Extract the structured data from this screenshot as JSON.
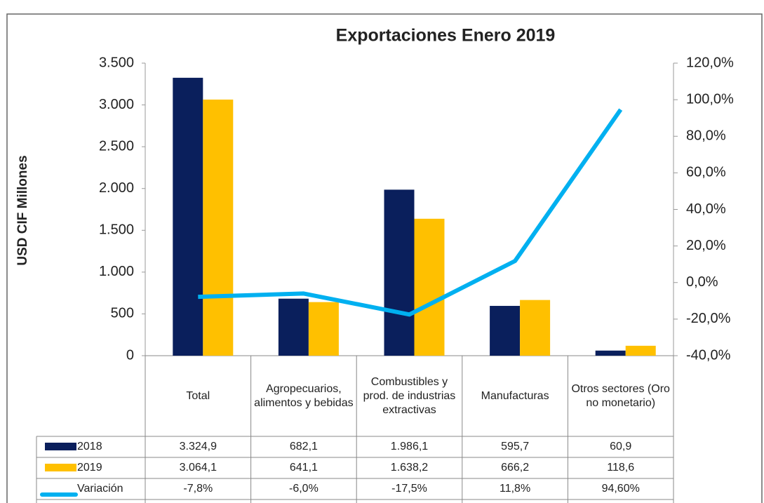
{
  "chart_data": {
    "type": "bar",
    "title": "Exportaciones  Enero 2019",
    "y_label": "USD CIF Millones",
    "categories": [
      "Total",
      "Agropecuarios, alimentos y bebidas",
      "Combustibles y prod. de industrias extractivas",
      "Manufacturas",
      "Otros sectores (Oro no monetario)"
    ],
    "series": [
      {
        "name": "2018",
        "type": "bar",
        "color": "#0a1f5c",
        "values": [
          3324.9,
          682.1,
          1986.1,
          595.7,
          60.9
        ],
        "value_labels": [
          "3.324,9",
          "682,1",
          "1.986,1",
          "595,7",
          "60,9"
        ]
      },
      {
        "name": "2019",
        "type": "bar",
        "color": "#ffc000",
        "values": [
          3064.1,
          641.1,
          1638.2,
          666.2,
          118.6
        ],
        "value_labels": [
          "3.064,1",
          "641,1",
          "1.638,2",
          "666,2",
          "118,6"
        ]
      },
      {
        "name": "Variación",
        "type": "line",
        "axis": "y2",
        "color": "#00b0f0",
        "values": [
          -7.8,
          -6.0,
          -17.5,
          11.8,
          94.6
        ],
        "value_labels": [
          "-7,8%",
          "-6,0%",
          "-17,5%",
          "11,8%",
          "94,60%"
        ]
      }
    ],
    "ylim": [
      0,
      3500
    ],
    "yticks": [
      0,
      500,
      {
        "value": 1000,
        "label": "1.000"
      },
      {
        "value": 1500,
        "label": "1.500"
      },
      {
        "value": 2000,
        "label": "2.000"
      },
      {
        "value": 2500,
        "label": "2.500"
      },
      {
        "value": 3000,
        "label": "3.000"
      },
      {
        "value": 3500,
        "label": "3.500"
      }
    ],
    "y2lim": [
      -40,
      120
    ],
    "y2ticks": [
      {
        "value": -40,
        "label": "-40,0%"
      },
      {
        "value": -20,
        "label": "-20,0%"
      },
      {
        "value": 0,
        "label": "0,0%"
      },
      {
        "value": 20,
        "label": "20,0%"
      },
      {
        "value": 40,
        "label": "40,0%"
      },
      {
        "value": 60,
        "label": "60,0%"
      },
      {
        "value": 80,
        "label": "80,0%"
      },
      {
        "value": 100,
        "label": "100,0%"
      },
      {
        "value": 120,
        "label": "120,0%"
      }
    ],
    "data_table": true
  }
}
